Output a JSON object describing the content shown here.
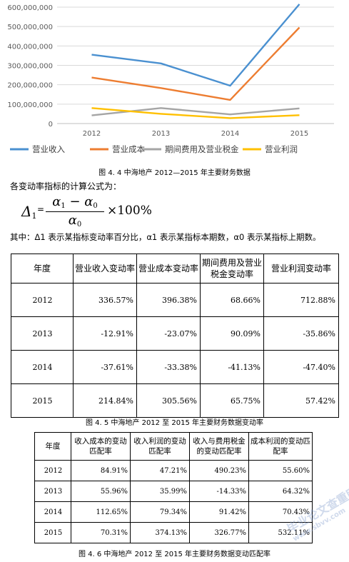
{
  "chart_data": {
    "type": "line",
    "x": [
      "2012",
      "2013",
      "2014",
      "2015"
    ],
    "y_ticks": [
      "0",
      "100,000,000",
      "200,000,000",
      "300,000,000",
      "400,000,000",
      "500,000,000",
      "600,000,000"
    ],
    "ylim": [
      0,
      600000000
    ],
    "series": [
      {
        "name": "营业收入",
        "color": "#4a90d0",
        "values": [
          355000000,
          310000000,
          195000000,
          615000000
        ]
      },
      {
        "name": "营业成本",
        "color": "#ed7d31",
        "values": [
          237000000,
          183000000,
          122000000,
          495000000
        ]
      },
      {
        "name": "期间费用及营业税金",
        "color": "#a5a5a5",
        "values": [
          42000000,
          80000000,
          47000000,
          78000000
        ]
      },
      {
        "name": "营业利润",
        "color": "#ffc000",
        "values": [
          80000000,
          50000000,
          28000000,
          43000000
        ]
      }
    ],
    "grid": true,
    "legend": "bottom"
  },
  "captions": {
    "fig44": "图 4. 4 中海地产 2012—2015 年主要财务数据",
    "fig45": "图 4. 5 中海地产 2012 至 2015 年主要财务数据变动率",
    "fig46": "图 4. 6 中海地产 2012 至 2015 年主要财务数据变动匹配率"
  },
  "formula": {
    "intro": "各变动率指标的计算公式为：",
    "lhs": "Δ",
    "lhs_sub": "1",
    "eq": "=",
    "num_a": "α",
    "num_a_sub": "1",
    "minus": " − ",
    "num_b": "α",
    "num_b_sub": "0",
    "den": "α",
    "den_sub": "0",
    "tail": "×100%",
    "note": "其中：Δ1 表示某指标变动率百分比，α1 表示某指标本期数，α0 表示某指标上期数。"
  },
  "table1": {
    "headers": [
      "年度",
      "营业收入变动率",
      "营业成本变动率",
      "期间费用及营业税金变动率",
      "营业利润变动率"
    ],
    "rows": [
      [
        "2012",
        "336.57%",
        "396.38%",
        "68.66%",
        "712.88%"
      ],
      [
        "2013",
        "-12.91%",
        "-23.07%",
        "90.09%",
        "-35.86%"
      ],
      [
        "2014",
        "-37.61%",
        "-33.38%",
        "-41.13%",
        "-47.40%"
      ],
      [
        "2015",
        "214.84%",
        "305.56%",
        "65.75%",
        "57.42%"
      ]
    ]
  },
  "table2": {
    "headers": [
      "年度",
      "收入成本的变动匹配率",
      "收入利润的变动匹配率",
      "收入与费用税金的变动匹配率",
      "成本利润的变动匹配率"
    ],
    "rows": [
      [
        "2012",
        "84.91%",
        "47.21%",
        "490.23%",
        "55.60%"
      ],
      [
        "2013",
        "55.96%",
        "35.99%",
        "-14.33%",
        "64.32%"
      ],
      [
        "2014",
        "112.65%",
        "79.34%",
        "91.42%",
        "70.43%"
      ],
      [
        "2015",
        "70.31%",
        "374.13%",
        "326.77%",
        "532.11%"
      ]
    ]
  },
  "watermark": {
    "text": "毕业论文查重网",
    "url": "www.sbvv.com"
  }
}
